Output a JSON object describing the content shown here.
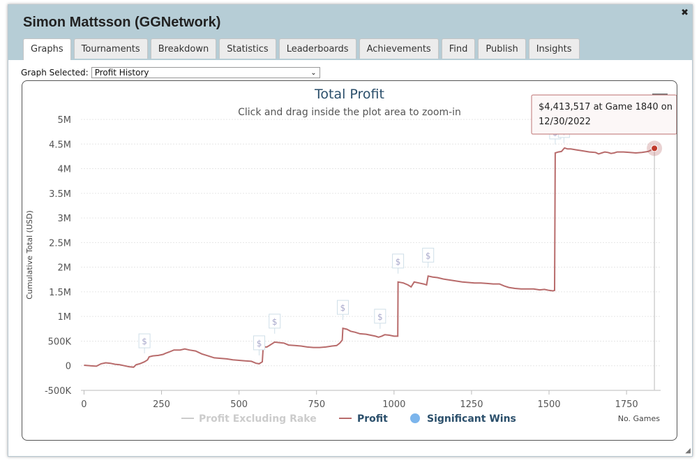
{
  "window": {
    "title": "Simon Mattsson (GGNetwork)",
    "close_glyph": "✖"
  },
  "tabs": [
    {
      "label": "Graphs",
      "active": true
    },
    {
      "label": "Tournaments"
    },
    {
      "label": "Breakdown"
    },
    {
      "label": "Statistics"
    },
    {
      "label": "Leaderboards"
    },
    {
      "label": "Achievements"
    },
    {
      "label": "Find"
    },
    {
      "label": "Publish"
    },
    {
      "label": "Insights"
    }
  ],
  "graph_select": {
    "label": "Graph Selected:",
    "value": "Profit History",
    "caret": "⌄"
  },
  "chart_data": {
    "type": "line",
    "title": "Total Profit",
    "subtitle": "Click and drag inside the plot area to zoom-in",
    "xlabel": "No. Games",
    "ylabel": "Cumulative Total (USD)",
    "xlim": [
      -10,
      1860
    ],
    "ylim": [
      -500000,
      5000000
    ],
    "x_ticks": [
      0,
      250,
      500,
      750,
      1000,
      1250,
      1500,
      1750
    ],
    "y_ticks": [
      -500000,
      0,
      500000,
      1000000,
      1500000,
      2000000,
      2500000,
      3000000,
      3500000,
      4000000,
      4500000,
      5000000
    ],
    "y_tick_labels": [
      "-500K",
      "0",
      "500K",
      "1M",
      "1.5M",
      "2M",
      "2.5M",
      "3M",
      "3.5M",
      "4M",
      "4.5M",
      "5M"
    ],
    "grid": {
      "y": true,
      "x": false
    },
    "legend_position": "bottom",
    "series": [
      {
        "name": "Profit Excluding Rake",
        "color": "#cccccc",
        "hidden": true,
        "points": []
      },
      {
        "name": "Profit",
        "color": "#b86b6b",
        "points": [
          [
            0,
            10000
          ],
          [
            20,
            0
          ],
          [
            40,
            -10000
          ],
          [
            55,
            40000
          ],
          [
            70,
            60000
          ],
          [
            85,
            50000
          ],
          [
            100,
            30000
          ],
          [
            115,
            20000
          ],
          [
            130,
            0
          ],
          [
            145,
            -20000
          ],
          [
            160,
            -30000
          ],
          [
            168,
            20000
          ],
          [
            180,
            40000
          ],
          [
            195,
            80000
          ],
          [
            205,
            120000
          ],
          [
            210,
            180000
          ],
          [
            222,
            200000
          ],
          [
            240,
            210000
          ],
          [
            255,
            230000
          ],
          [
            262,
            250000
          ],
          [
            275,
            280000
          ],
          [
            290,
            320000
          ],
          [
            310,
            320000
          ],
          [
            325,
            340000
          ],
          [
            340,
            320000
          ],
          [
            360,
            300000
          ],
          [
            380,
            240000
          ],
          [
            400,
            200000
          ],
          [
            420,
            160000
          ],
          [
            440,
            150000
          ],
          [
            460,
            140000
          ],
          [
            480,
            120000
          ],
          [
            500,
            110000
          ],
          [
            520,
            100000
          ],
          [
            540,
            90000
          ],
          [
            555,
            50000
          ],
          [
            565,
            40000
          ],
          [
            575,
            80000
          ],
          [
            578,
            380000
          ],
          [
            590,
            380000
          ],
          [
            600,
            420000
          ],
          [
            615,
            480000
          ],
          [
            630,
            470000
          ],
          [
            645,
            460000
          ],
          [
            660,
            420000
          ],
          [
            680,
            410000
          ],
          [
            700,
            400000
          ],
          [
            720,
            380000
          ],
          [
            740,
            370000
          ],
          [
            760,
            370000
          ],
          [
            780,
            380000
          ],
          [
            800,
            400000
          ],
          [
            815,
            410000
          ],
          [
            825,
            460000
          ],
          [
            833,
            520000
          ],
          [
            835,
            760000
          ],
          [
            848,
            740000
          ],
          [
            860,
            700000
          ],
          [
            875,
            680000
          ],
          [
            890,
            650000
          ],
          [
            910,
            640000
          ],
          [
            925,
            620000
          ],
          [
            940,
            600000
          ],
          [
            950,
            580000
          ],
          [
            960,
            600000
          ],
          [
            970,
            630000
          ],
          [
            985,
            620000
          ],
          [
            1000,
            600000
          ],
          [
            1012,
            600000
          ],
          [
            1013,
            1700000
          ],
          [
            1030,
            1680000
          ],
          [
            1045,
            1640000
          ],
          [
            1055,
            1600000
          ],
          [
            1065,
            1700000
          ],
          [
            1080,
            1680000
          ],
          [
            1095,
            1660000
          ],
          [
            1105,
            1640000
          ],
          [
            1110,
            1820000
          ],
          [
            1125,
            1800000
          ],
          [
            1140,
            1790000
          ],
          [
            1160,
            1760000
          ],
          [
            1180,
            1740000
          ],
          [
            1200,
            1720000
          ],
          [
            1220,
            1700000
          ],
          [
            1240,
            1690000
          ],
          [
            1260,
            1680000
          ],
          [
            1280,
            1680000
          ],
          [
            1300,
            1670000
          ],
          [
            1320,
            1660000
          ],
          [
            1340,
            1660000
          ],
          [
            1355,
            1620000
          ],
          [
            1370,
            1590000
          ],
          [
            1390,
            1570000
          ],
          [
            1410,
            1560000
          ],
          [
            1430,
            1560000
          ],
          [
            1450,
            1560000
          ],
          [
            1470,
            1540000
          ],
          [
            1485,
            1550000
          ],
          [
            1500,
            1530000
          ],
          [
            1512,
            1520000
          ],
          [
            1518,
            1530000
          ],
          [
            1520,
            4320000
          ],
          [
            1530,
            4340000
          ],
          [
            1540,
            4350000
          ],
          [
            1550,
            4420000
          ],
          [
            1560,
            4400000
          ],
          [
            1570,
            4400000
          ],
          [
            1590,
            4380000
          ],
          [
            1610,
            4360000
          ],
          [
            1630,
            4340000
          ],
          [
            1650,
            4330000
          ],
          [
            1660,
            4300000
          ],
          [
            1670,
            4320000
          ],
          [
            1680,
            4340000
          ],
          [
            1690,
            4330000
          ],
          [
            1700,
            4310000
          ],
          [
            1710,
            4320000
          ],
          [
            1720,
            4340000
          ],
          [
            1740,
            4340000
          ],
          [
            1760,
            4330000
          ],
          [
            1780,
            4320000
          ],
          [
            1800,
            4330000
          ],
          [
            1820,
            4350000
          ],
          [
            1830,
            4380000
          ],
          [
            1840,
            4413517
          ]
        ]
      }
    ],
    "significant_wins": {
      "name": "Significant Wins",
      "color": "#7cb5ec",
      "marker_label": "$",
      "games": [
        195,
        565,
        615,
        835,
        955,
        1013,
        1110,
        1520,
        1548
      ]
    },
    "tooltip": {
      "line1": "$4,413,517 at Game 1840 on",
      "line2": "12/30/2022",
      "game": 1840,
      "value": 4413517
    }
  }
}
